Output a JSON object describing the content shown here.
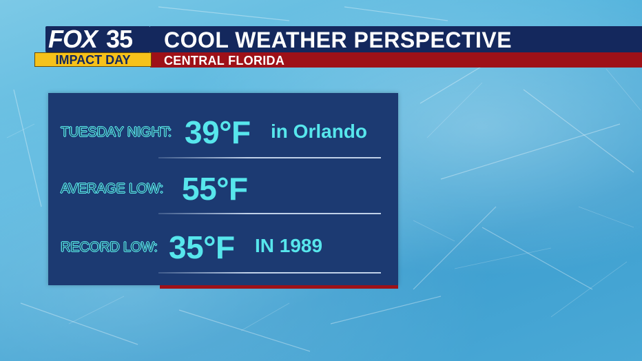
{
  "header": {
    "title": "COOL WEATHER PERSPECTIVE",
    "subtitle": "CENTRAL FLORIDA"
  },
  "logo": {
    "brand": "FOX",
    "channel": "35",
    "tag": "IMPACT DAY"
  },
  "panel": {
    "rows": [
      {
        "label": "TUESDAY NIGHT:",
        "value": "39°F",
        "extra": "in Orlando"
      },
      {
        "label": "AVERAGE LOW:",
        "value": "55°F",
        "extra": ""
      },
      {
        "label": "RECORD LOW:",
        "value": "35°F",
        "extra": "IN 1989"
      }
    ]
  },
  "colors": {
    "title_bar": "#14285d",
    "subtitle_bar": "#9e1118",
    "impact_bar": "#f6c21a",
    "panel": "#1c3a72",
    "accent_text": "#57e6ec"
  }
}
